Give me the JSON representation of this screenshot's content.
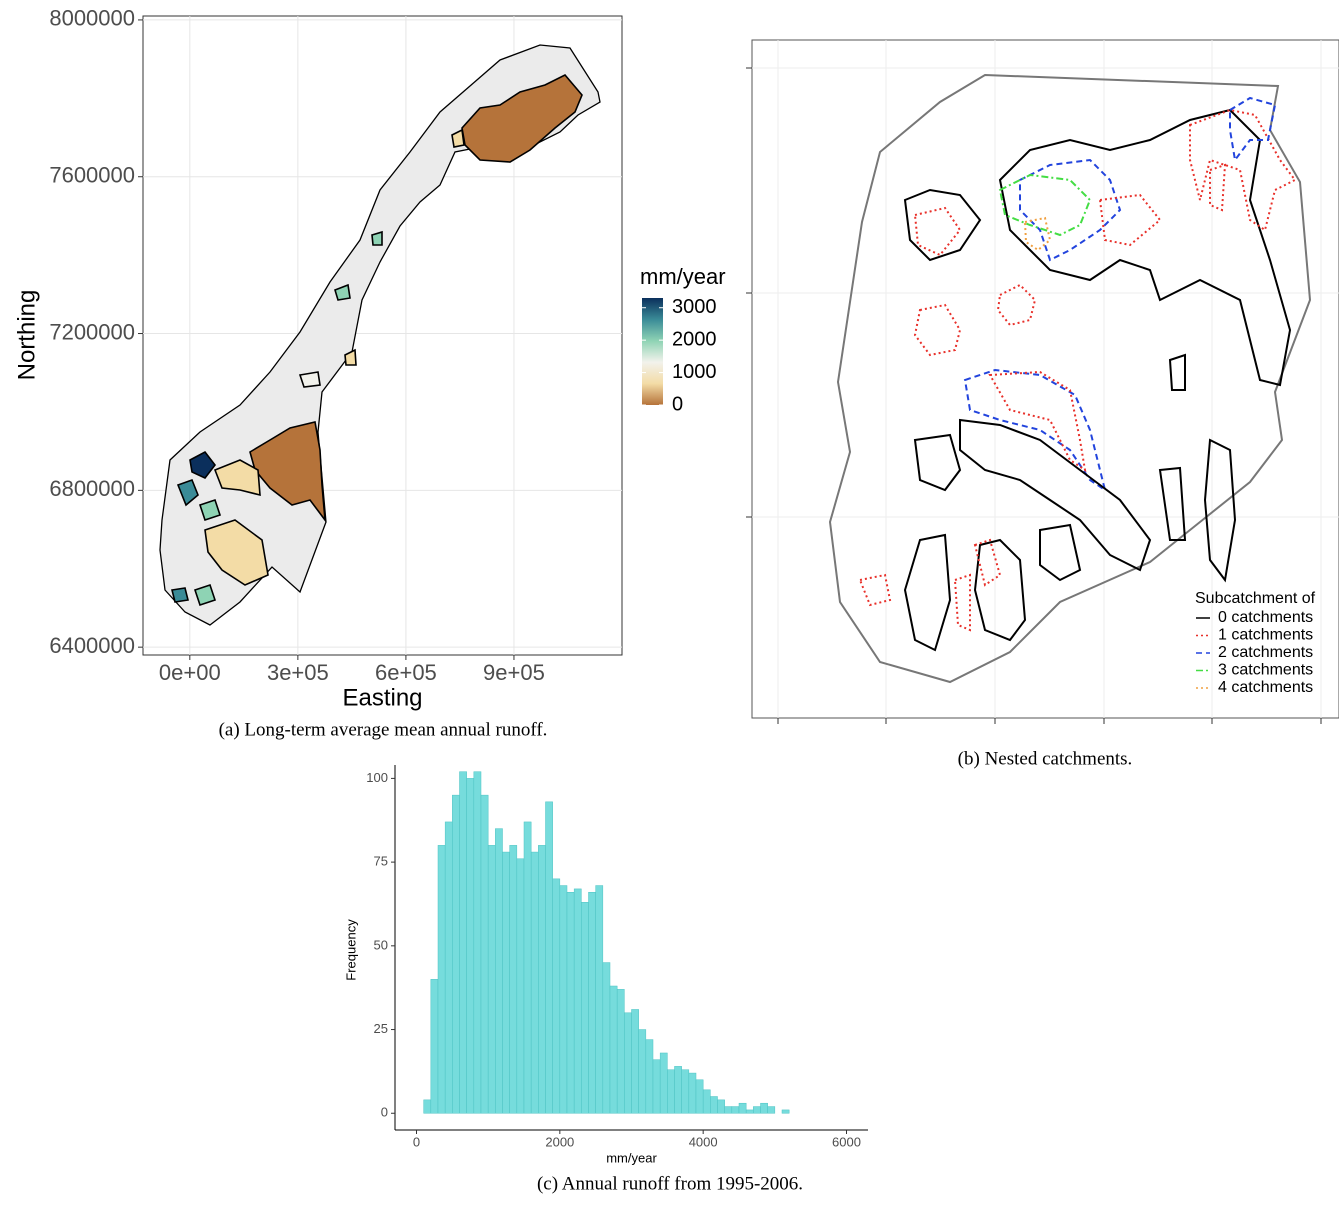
{
  "chart_data": [
    {
      "type": "map",
      "caption": "(a) Long-term average mean annual runoff.",
      "xlabel": "Easting",
      "ylabel": "Northing",
      "xlim": [
        -130000,
        1200000
      ],
      "ylim": [
        6380000,
        8010000
      ],
      "xticks": [
        {
          "value": 0,
          "label": "0e+00"
        },
        {
          "value": 300000,
          "label": "3e+05"
        },
        {
          "value": 600000,
          "label": "6e+05"
        },
        {
          "value": 900000,
          "label": "9e+05"
        }
      ],
      "yticks": [
        6400000,
        6800000,
        7200000,
        7600000,
        8000000
      ],
      "grid": true,
      "colorbar": {
        "title": "mm/year",
        "lim": [
          0,
          3300
        ],
        "ticks": [
          0,
          1000,
          2000,
          3000
        ],
        "colors": [
          "#b5733a",
          "#f3dca6",
          "#f2f2ec",
          "#8ed3b4",
          "#3a8b97",
          "#0b2f5c"
        ]
      }
    },
    {
      "type": "map",
      "caption": "(b) Nested catchments.",
      "legend_title": "Subcatchment of",
      "legend": "bottom-right",
      "series": [
        {
          "name": "0 catchments",
          "color": "#000000",
          "dash": "solid"
        },
        {
          "name": "1 catchments",
          "color": "#e8302a",
          "dash": "dotted"
        },
        {
          "name": "2 catchments",
          "color": "#2244dd",
          "dash": "dashed"
        },
        {
          "name": "3 catchments",
          "color": "#44dd44",
          "dash": "dotdash"
        },
        {
          "name": "4 catchments",
          "color": "#f0a040",
          "dash": "dotted"
        }
      ]
    },
    {
      "type": "histogram",
      "caption": "(c) Annual runoff from 1995-2006.",
      "xlabel": "mm/year",
      "ylabel": "Frequency",
      "color": "#76dcdc",
      "bins": [
        0,
        100,
        200,
        300,
        400,
        500,
        600,
        700,
        800,
        900,
        1000,
        1100,
        1200,
        1300,
        1400,
        1500,
        1600,
        1700,
        1800,
        1900,
        2000,
        2100,
        2200,
        2300,
        2400,
        2500,
        2600,
        2700,
        2800,
        2900,
        3000,
        3100,
        3200,
        3300,
        3400,
        3500,
        3600,
        3700,
        3800,
        3900,
        4000,
        4100,
        4200,
        4300,
        4400,
        4500,
        4600,
        4700,
        4800,
        4900,
        5000,
        5100,
        5200,
        5300,
        5400,
        5500,
        5600,
        5700,
        5800,
        5900,
        6000
      ],
      "values": [
        0,
        4,
        40,
        80,
        87,
        95,
        102,
        100,
        102,
        95,
        80,
        85,
        78,
        80,
        76,
        87,
        78,
        80,
        93,
        70,
        68,
        66,
        67,
        63,
        66,
        68,
        45,
        38,
        37,
        30,
        31,
        25,
        22,
        16,
        18,
        13,
        14,
        13,
        12,
        10,
        7,
        5,
        4,
        2,
        2,
        3,
        1,
        2,
        3,
        2,
        0,
        1,
        0,
        0,
        0,
        0,
        0,
        0,
        0,
        0
      ],
      "xlim": [
        -300,
        6300
      ],
      "ylim": [
        -5,
        104
      ],
      "xticks": [
        0,
        2000,
        4000,
        6000
      ],
      "yticks": [
        0,
        25,
        50,
        75,
        100
      ]
    }
  ]
}
